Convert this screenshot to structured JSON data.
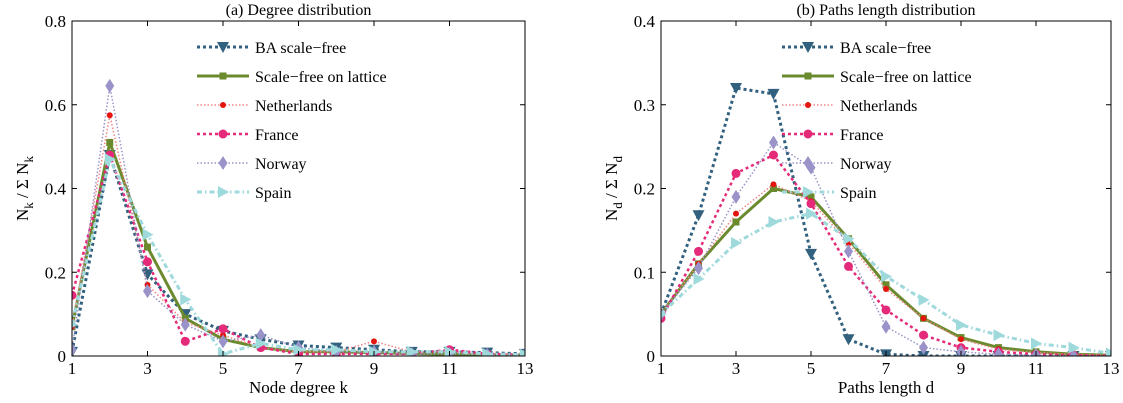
{
  "chart_data": [
    {
      "type": "line",
      "title": "(a) Degree distribution",
      "xlabel": "Node degree k",
      "ylabel": "N_k / Σ N_k",
      "ylabel_parts": {
        "n": "N",
        "n_sub": "k",
        "mid": " / Σ N",
        "mid_sub": "k"
      },
      "xlim": [
        1,
        13
      ],
      "ylim": [
        0,
        0.8
      ],
      "xticks": [
        1,
        3,
        5,
        7,
        9,
        11,
        13
      ],
      "yticks": [
        0,
        0.2,
        0.4,
        0.6,
        0.8
      ],
      "ytick_labels": [
        "0",
        "0.2",
        "0.4",
        "0.6",
        "0.8"
      ],
      "grid": false,
      "legend_position": "top-right",
      "x": [
        1,
        2,
        3,
        4,
        5,
        6,
        7,
        8,
        9,
        10,
        11,
        12,
        13
      ],
      "series": [
        {
          "name": "BA scale−free",
          "color": "#31617f",
          "dash": "3,3",
          "width": 3,
          "marker": "triangle-down",
          "values": [
            0.01,
            0.48,
            0.195,
            0.1,
            0.06,
            0.04,
            0.025,
            0.02,
            0.015,
            0.01,
            0.01,
            0.008,
            0.005
          ]
        },
        {
          "name": "Scale−free on lattice",
          "color": "#6b8a2e",
          "dash": "none",
          "width": 3,
          "marker": "square",
          "values": [
            0.07,
            0.51,
            0.26,
            0.09,
            0.04,
            0.02,
            0.01,
            0.01,
            0.008,
            0.006,
            0.004,
            0.003,
            0.002
          ]
        },
        {
          "name": "Netherlands",
          "color": "#f08585",
          "markercolor": "#e4140f",
          "dash": "1.5,2",
          "width": 1.5,
          "marker": "dot",
          "values": [
            0.07,
            0.575,
            0.17,
            0.08,
            0.05,
            0.02,
            0.01,
            0.01,
            0.035,
            0.01,
            0.01,
            0.005,
            0.003
          ]
        },
        {
          "name": "France",
          "color": "#e52a7a",
          "dash": "3,3",
          "width": 2.5,
          "marker": "circle",
          "values": [
            0.145,
            0.48,
            0.225,
            0.035,
            0.065,
            0.02,
            0.005,
            0.005,
            0.005,
            0.005,
            0.015,
            0.005,
            0.003
          ]
        },
        {
          "name": "Norway",
          "color": "#9a93c9",
          "dash": "1.5,2",
          "width": 1.5,
          "marker": "diamond",
          "values": [
            0.015,
            0.645,
            0.155,
            0.075,
            0.035,
            0.05,
            0.02,
            0.01,
            0.01,
            0.005,
            0.005,
            0.003,
            0.002
          ]
        },
        {
          "name": "Spain",
          "color": "#9ed9dc",
          "dash": "5,3,1.5,3",
          "width": 3,
          "marker": "triangle-right",
          "values": [
            0.075,
            0.47,
            0.29,
            0.135,
            0.005,
            0.03,
            0.015,
            0.015,
            0.01,
            0.01,
            0.01,
            0.005,
            0.003
          ]
        }
      ]
    },
    {
      "type": "line",
      "title": "(b) Paths length distribution",
      "xlabel": "Paths length d",
      "ylabel": "N_d / Σ N_d",
      "ylabel_parts": {
        "n": "N",
        "n_sub": "d",
        "mid": " / Σ N",
        "mid_sub": "d"
      },
      "xlim": [
        1,
        13
      ],
      "ylim": [
        0,
        0.4
      ],
      "xticks": [
        1,
        3,
        5,
        7,
        9,
        11,
        13
      ],
      "yticks": [
        0,
        0.1,
        0.2,
        0.3,
        0.4
      ],
      "ytick_labels": [
        "0",
        "0.1",
        "0.2",
        "0.3",
        "0.4"
      ],
      "grid": false,
      "legend_position": "top-right",
      "x": [
        1,
        2,
        3,
        4,
        5,
        6,
        7,
        8,
        9,
        10,
        11,
        12,
        13
      ],
      "series": [
        {
          "name": "BA scale−free",
          "color": "#31617f",
          "dash": "3,3",
          "width": 3,
          "marker": "triangle-down",
          "values": [
            0.05,
            0.168,
            0.32,
            0.313,
            0.122,
            0.02,
            0.002,
            0.0,
            0.0,
            0.0,
            0.0,
            0.0,
            0.0
          ]
        },
        {
          "name": "Scale−free on lattice",
          "color": "#6b8a2e",
          "dash": "none",
          "width": 3,
          "marker": "square",
          "values": [
            0.05,
            0.11,
            0.16,
            0.2,
            0.19,
            0.14,
            0.085,
            0.045,
            0.022,
            0.01,
            0.005,
            0.002,
            0.001
          ]
        },
        {
          "name": "Netherlands",
          "color": "#f08585",
          "markercolor": "#e4140f",
          "dash": "1.5,2",
          "width": 1.5,
          "marker": "dot",
          "values": [
            0.05,
            0.11,
            0.17,
            0.205,
            0.185,
            0.135,
            0.08,
            0.045,
            0.02,
            0.008,
            0.004,
            0.002,
            0.001
          ]
        },
        {
          "name": "France",
          "color": "#e52a7a",
          "dash": "3,3",
          "width": 2.5,
          "marker": "circle",
          "values": [
            0.045,
            0.125,
            0.218,
            0.24,
            0.182,
            0.107,
            0.055,
            0.025,
            0.01,
            0.005,
            0.002,
            0.001,
            0.0
          ]
        },
        {
          "name": "Norway",
          "color": "#9a93c9",
          "dash": "1.5,2",
          "width": 1.5,
          "marker": "diamond",
          "values": [
            0.05,
            0.105,
            0.19,
            0.255,
            0.225,
            0.125,
            0.035,
            0.01,
            0.005,
            0.002,
            0.001,
            0.0,
            0.0
          ]
        },
        {
          "name": "Spain",
          "color": "#9ed9dc",
          "dash": "5,3,1.5,3",
          "width": 3,
          "marker": "triangle-right",
          "values": [
            0.05,
            0.092,
            0.135,
            0.16,
            0.17,
            0.14,
            0.095,
            0.067,
            0.037,
            0.025,
            0.015,
            0.01,
            0.003
          ]
        }
      ]
    }
  ]
}
